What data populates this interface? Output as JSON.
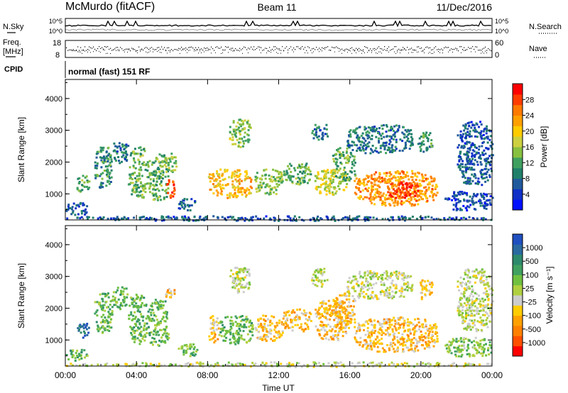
{
  "header": {
    "title": "McMurdo (fitACF)",
    "beam": "Beam 11",
    "date": "11/Dec/2016"
  },
  "status_panels": {
    "nsky_label": "N.Sky",
    "nsearch_label": "N.Search",
    "noise_ticks": [
      "10^5",
      "10^0"
    ],
    "freq_label_1": "Freq.",
    "freq_label_2": "[MHz]",
    "freq_ticks": [
      "18",
      "8"
    ],
    "nave_label": "Nave",
    "nave_ticks": [
      "60",
      "0"
    ],
    "cpid_label": "CPID",
    "cpid_text": "normal (fast) 151 RF"
  },
  "power_colorbar": {
    "label": "Power [dB]",
    "ticks": [
      "28",
      "24",
      "20",
      "16",
      "12",
      "8",
      "4"
    ],
    "colors": [
      "#ff0000",
      "#ff3c00",
      "#ff7a00",
      "#ffa000",
      "#ffcc00",
      "#ccd040",
      "#88c040",
      "#40a060",
      "#20806a",
      "#205a9c",
      "#1030c8",
      "#0010ff"
    ]
  },
  "velocity_colorbar": {
    "label": "Velocity [m s⁻¹]",
    "ticks": [
      "1000",
      "500",
      "100",
      "25",
      "-25",
      "-100",
      "-500",
      "-1000"
    ],
    "colors": [
      "#2050c0",
      "#2a6aa0",
      "#2e8a6c",
      "#40a060",
      "#70c040",
      "#b0d040",
      "#cccccc",
      "#ffcc00",
      "#ffa000",
      "#ff8000",
      "#ff5000",
      "#ff0000"
    ]
  },
  "x_axis": {
    "label": "Time UT",
    "ticks": [
      "00:00",
      "04:00",
      "08:00",
      "12:00",
      "16:00",
      "20:00",
      "00:00"
    ]
  },
  "y_axis": {
    "label": "Slant Range [km]",
    "ticks": [
      "4000",
      "3000",
      "2000",
      "1000"
    ]
  },
  "chart_data": [
    {
      "type": "heatmap",
      "name": "power",
      "xlabel": "Time UT",
      "ylabel": "Slant Range [km]",
      "x_range_hours": [
        0,
        24
      ],
      "y_range_km": [
        180,
        4600
      ],
      "colorbar_label": "Power [dB]",
      "colorbar_range": [
        0,
        30
      ],
      "blobs": [
        {
          "t0": 0.0,
          "t1": 24.0,
          "r0": 180,
          "r1": 330,
          "value": 6
        },
        {
          "t0": 0.0,
          "t1": 1.2,
          "r0": 350,
          "r1": 750,
          "value": 6
        },
        {
          "t0": 0.6,
          "t1": 1.3,
          "r0": 1100,
          "r1": 1600,
          "value": 12
        },
        {
          "t0": 1.6,
          "t1": 2.6,
          "r0": 1200,
          "r1": 2500,
          "value": 10
        },
        {
          "t0": 2.6,
          "t1": 3.5,
          "r0": 2000,
          "r1": 2700,
          "value": 8
        },
        {
          "t0": 3.5,
          "t1": 4.6,
          "r0": 900,
          "r1": 2500,
          "value": 12
        },
        {
          "t0": 4.6,
          "t1": 5.8,
          "r0": 800,
          "r1": 2300,
          "value": 12
        },
        {
          "t0": 5.6,
          "t1": 6.1,
          "r0": 900,
          "r1": 1500,
          "value": 26
        },
        {
          "t0": 5.5,
          "t1": 6.2,
          "r0": 1700,
          "r1": 2300,
          "value": 14
        },
        {
          "t0": 6.3,
          "t1": 7.4,
          "r0": 500,
          "r1": 900,
          "value": 6
        },
        {
          "t0": 8.0,
          "t1": 10.5,
          "r0": 900,
          "r1": 1800,
          "value": 20
        },
        {
          "t0": 9.2,
          "t1": 10.4,
          "r0": 2500,
          "r1": 3400,
          "value": 14
        },
        {
          "t0": 10.6,
          "t1": 12.2,
          "r0": 1000,
          "r1": 1800,
          "value": 14
        },
        {
          "t0": 12.2,
          "t1": 13.8,
          "r0": 1300,
          "r1": 2000,
          "value": 12
        },
        {
          "t0": 13.8,
          "t1": 14.7,
          "r0": 2700,
          "r1": 3300,
          "value": 8
        },
        {
          "t0": 14.0,
          "t1": 15.8,
          "r0": 1000,
          "r1": 1800,
          "value": 16
        },
        {
          "t0": 15.0,
          "t1": 16.3,
          "r0": 1400,
          "r1": 2500,
          "value": 12
        },
        {
          "t0": 16.2,
          "t1": 20.9,
          "r0": 650,
          "r1": 1750,
          "value": 22
        },
        {
          "t0": 18.0,
          "t1": 19.8,
          "r0": 900,
          "r1": 1400,
          "value": 27
        },
        {
          "t0": 15.8,
          "t1": 19.5,
          "r0": 2300,
          "r1": 3200,
          "value": 8
        },
        {
          "t0": 19.8,
          "t1": 20.6,
          "r0": 2300,
          "r1": 3000,
          "value": 10
        },
        {
          "t0": 21.3,
          "t1": 24.0,
          "r0": 500,
          "r1": 1100,
          "value": 5
        },
        {
          "t0": 22.0,
          "t1": 24.0,
          "r0": 1300,
          "r1": 3300,
          "value": 6
        }
      ]
    },
    {
      "type": "heatmap",
      "name": "velocity",
      "xlabel": "Time UT",
      "ylabel": "Slant Range [km]",
      "x_range_hours": [
        0,
        24
      ],
      "y_range_km": [
        180,
        4600
      ],
      "colorbar_label": "Velocity [m s⁻¹]",
      "colorbar_range": [
        -1000,
        1000
      ],
      "blobs": [
        {
          "t0": 0.0,
          "t1": 24.0,
          "r0": 180,
          "r1": 330,
          "value": 0
        },
        {
          "t0": 0.0,
          "t1": 1.2,
          "r0": 350,
          "r1": 750,
          "value": 300
        },
        {
          "t0": 0.6,
          "t1": 1.3,
          "r0": 1100,
          "r1": 1600,
          "value": 800
        },
        {
          "t0": 1.6,
          "t1": 2.6,
          "r0": 1200,
          "r1": 2500,
          "value": 300
        },
        {
          "t0": 2.6,
          "t1": 3.5,
          "r0": 2000,
          "r1": 2700,
          "value": 300
        },
        {
          "t0": 3.5,
          "t1": 4.6,
          "r0": 900,
          "r1": 2500,
          "value": 300
        },
        {
          "t0": 4.6,
          "t1": 5.8,
          "r0": 800,
          "r1": 2300,
          "value": 300
        },
        {
          "t0": 5.6,
          "t1": 6.1,
          "r0": 2300,
          "r1": 2700,
          "value": -300
        },
        {
          "t0": 6.3,
          "t1": 7.4,
          "r0": 500,
          "r1": 900,
          "value": 300
        },
        {
          "t0": 8.0,
          "t1": 8.6,
          "r0": 900,
          "r1": 1800,
          "value": -300
        },
        {
          "t0": 8.6,
          "t1": 10.5,
          "r0": 900,
          "r1": 1800,
          "value": 300
        },
        {
          "t0": 9.2,
          "t1": 10.4,
          "r0": 2500,
          "r1": 3400,
          "value": 0
        },
        {
          "t0": 10.6,
          "t1": 12.2,
          "r0": 1000,
          "r1": 1800,
          "value": -300
        },
        {
          "t0": 12.2,
          "t1": 13.8,
          "r0": 1300,
          "r1": 2000,
          "value": -300
        },
        {
          "t0": 13.8,
          "t1": 14.7,
          "r0": 2700,
          "r1": 3300,
          "value": 0
        },
        {
          "t0": 14.0,
          "t1": 15.8,
          "r0": 1000,
          "r1": 2300,
          "value": -300
        },
        {
          "t0": 15.0,
          "t1": 16.3,
          "r0": 1400,
          "r1": 2500,
          "value": -300
        },
        {
          "t0": 16.2,
          "t1": 20.9,
          "r0": 650,
          "r1": 1750,
          "value": -300
        },
        {
          "t0": 15.8,
          "t1": 19.5,
          "r0": 2300,
          "r1": 3200,
          "value": 0
        },
        {
          "t0": 19.8,
          "t1": 20.6,
          "r0": 2300,
          "r1": 3000,
          "value": -300
        },
        {
          "t0": 21.3,
          "t1": 24.0,
          "r0": 500,
          "r1": 1100,
          "value": 200
        },
        {
          "t0": 22.0,
          "t1": 24.0,
          "r0": 1300,
          "r1": 3300,
          "value": 0
        }
      ]
    }
  ]
}
